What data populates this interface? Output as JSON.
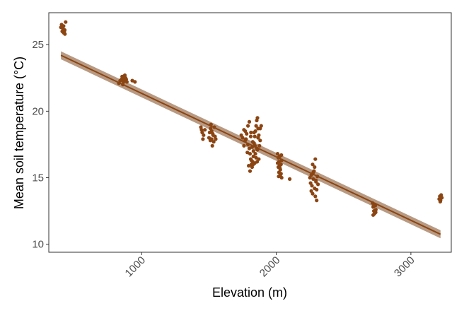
{
  "chart_data": {
    "type": "scatter",
    "title": "",
    "xlabel": "Elevation (m)",
    "ylabel": "Mean soil temperature (°C)",
    "xlim": [
      310,
      3300
    ],
    "ylim": [
      9.4,
      27.4
    ],
    "x_ticks": [
      1000,
      2000,
      3000
    ],
    "x_tick_labels": [
      "1000",
      "2000",
      "3000"
    ],
    "y_ticks": [
      10,
      15,
      20,
      25
    ],
    "y_tick_labels": [
      "10",
      "15",
      "20",
      "25"
    ],
    "grid": false,
    "legend": "none",
    "point_color": "#8B4513",
    "line_color": "#8B4513",
    "band_color": "#A0785A",
    "fit_line": {
      "x_start": 400,
      "y_start": 24.2,
      "x_end": 3220,
      "y_end": 10.75,
      "band_half_width": 0.3
    },
    "groups": [
      {
        "x_center": 410,
        "x_spread": 30,
        "points": [
          [
            400,
            26.3
          ],
          [
            415,
            26.2
          ],
          [
            420,
            26.4
          ],
          [
            425,
            26.0
          ],
          [
            430,
            25.8
          ],
          [
            410,
            26.0
          ],
          [
            435,
            26.7
          ],
          [
            405,
            26.5
          ],
          [
            420,
            25.9
          ],
          [
            428,
            26.1
          ]
        ]
      },
      {
        "x_center": 870,
        "x_spread": 60,
        "points": [
          [
            830,
            22.1
          ],
          [
            850,
            22.4
          ],
          [
            860,
            22.6
          ],
          [
            870,
            22.3
          ],
          [
            880,
            22.5
          ],
          [
            890,
            22.2
          ],
          [
            860,
            22.0
          ],
          [
            875,
            22.7
          ],
          [
            840,
            22.3
          ],
          [
            870,
            22.5
          ],
          [
            885,
            22.4
          ],
          [
            930,
            22.3
          ],
          [
            950,
            22.2
          ],
          [
            855,
            22.6
          ],
          [
            865,
            22.2
          ]
        ]
      },
      {
        "x_center": 1480,
        "x_spread": 80,
        "points": [
          [
            1440,
            18.8
          ],
          [
            1450,
            18.4
          ],
          [
            1455,
            17.9
          ],
          [
            1460,
            18.2
          ],
          [
            1470,
            18.6
          ],
          [
            1500,
            18.0
          ],
          [
            1510,
            17.8
          ],
          [
            1520,
            18.5
          ],
          [
            1515,
            19.0
          ],
          [
            1525,
            17.4
          ],
          [
            1530,
            18.2
          ],
          [
            1535,
            17.7
          ],
          [
            1545,
            18.1
          ],
          [
            1540,
            18.8
          ],
          [
            1505,
            18.4
          ],
          [
            1520,
            17.9
          ],
          [
            1550,
            17.9
          ],
          [
            1445,
            18.6
          ],
          [
            1528,
            18.3
          ],
          [
            1512,
            18.7
          ]
        ]
      },
      {
        "x_center": 1810,
        "x_spread": 110,
        "points": [
          [
            1740,
            18.2
          ],
          [
            1750,
            18.0
          ],
          [
            1760,
            18.6
          ],
          [
            1770,
            17.8
          ],
          [
            1780,
            18.3
          ],
          [
            1790,
            17.5
          ],
          [
            1800,
            17.2
          ],
          [
            1805,
            16.8
          ],
          [
            1810,
            16.4
          ],
          [
            1815,
            16.0
          ],
          [
            1820,
            15.8
          ],
          [
            1825,
            16.2
          ],
          [
            1830,
            17.0
          ],
          [
            1835,
            17.6
          ],
          [
            1840,
            18.1
          ],
          [
            1845,
            18.5
          ],
          [
            1850,
            18.9
          ],
          [
            1855,
            19.3
          ],
          [
            1860,
            19.5
          ],
          [
            1865,
            18.7
          ],
          [
            1870,
            18.2
          ],
          [
            1875,
            17.4
          ],
          [
            1880,
            17.8
          ],
          [
            1790,
            18.9
          ],
          [
            1800,
            19.2
          ],
          [
            1810,
            18.1
          ],
          [
            1820,
            17.3
          ],
          [
            1830,
            16.6
          ],
          [
            1840,
            16.1
          ],
          [
            1850,
            16.5
          ],
          [
            1860,
            17.1
          ],
          [
            1770,
            18.5
          ],
          [
            1785,
            16.9
          ],
          [
            1795,
            15.9
          ],
          [
            1805,
            15.5
          ],
          [
            1815,
            16.3
          ],
          [
            1825,
            17.7
          ],
          [
            1835,
            18.4
          ],
          [
            1845,
            16.8
          ],
          [
            1855,
            17.2
          ],
          [
            1865,
            18.0
          ],
          [
            1880,
            18.7
          ],
          [
            1760,
            17.4
          ],
          [
            1775,
            17.9
          ],
          [
            1812,
            18.4
          ],
          [
            1828,
            16.0
          ],
          [
            1842,
            17.4
          ],
          [
            1858,
            16.2
          ],
          [
            1870,
            16.4
          ],
          [
            1888,
            18.9
          ]
        ]
      },
      {
        "x_center": 2030,
        "x_spread": 60,
        "points": [
          [
            2010,
            16.8
          ],
          [
            2015,
            16.5
          ],
          [
            2020,
            16.2
          ],
          [
            2025,
            15.9
          ],
          [
            2030,
            15.6
          ],
          [
            2035,
            15.3
          ],
          [
            2040,
            15.0
          ],
          [
            2015,
            15.8
          ],
          [
            2025,
            16.6
          ],
          [
            2030,
            15.2
          ],
          [
            2035,
            16.0
          ],
          [
            2020,
            15.4
          ],
          [
            2040,
            16.3
          ],
          [
            2010,
            16.1
          ],
          [
            2100,
            14.9
          ],
          [
            2028,
            15.7
          ],
          [
            2018,
            15.1
          ],
          [
            2038,
            16.7
          ]
        ]
      },
      {
        "x_center": 2290,
        "x_spread": 60,
        "points": [
          [
            2250,
            15.0
          ],
          [
            2255,
            14.6
          ],
          [
            2260,
            15.2
          ],
          [
            2265,
            14.4
          ],
          [
            2270,
            13.8
          ],
          [
            2275,
            14.9
          ],
          [
            2280,
            15.5
          ],
          [
            2285,
            14.2
          ],
          [
            2290,
            13.6
          ],
          [
            2295,
            14.8
          ],
          [
            2300,
            13.3
          ],
          [
            2305,
            15.1
          ],
          [
            2310,
            14.5
          ],
          [
            2270,
            16.0
          ],
          [
            2290,
            16.4
          ],
          [
            2285,
            15.8
          ],
          [
            2260,
            14.0
          ],
          [
            2300,
            14.1
          ],
          [
            2275,
            15.4
          ],
          [
            2295,
            14.7
          ]
        ]
      },
      {
        "x_center": 2730,
        "x_spread": 30,
        "points": [
          [
            2715,
            13.1
          ],
          [
            2720,
            12.8
          ],
          [
            2725,
            12.5
          ],
          [
            2730,
            12.3
          ],
          [
            2735,
            12.9
          ],
          [
            2740,
            12.6
          ],
          [
            2720,
            12.2
          ],
          [
            2730,
            13.0
          ],
          [
            2738,
            12.4
          ],
          [
            2725,
            12.9
          ]
        ]
      },
      {
        "x_center": 3220,
        "x_spread": 20,
        "points": [
          [
            3210,
            13.4
          ],
          [
            3215,
            13.6
          ],
          [
            3220,
            13.3
          ],
          [
            3225,
            13.7
          ],
          [
            3230,
            13.5
          ],
          [
            3218,
            13.2
          ]
        ]
      }
    ]
  }
}
